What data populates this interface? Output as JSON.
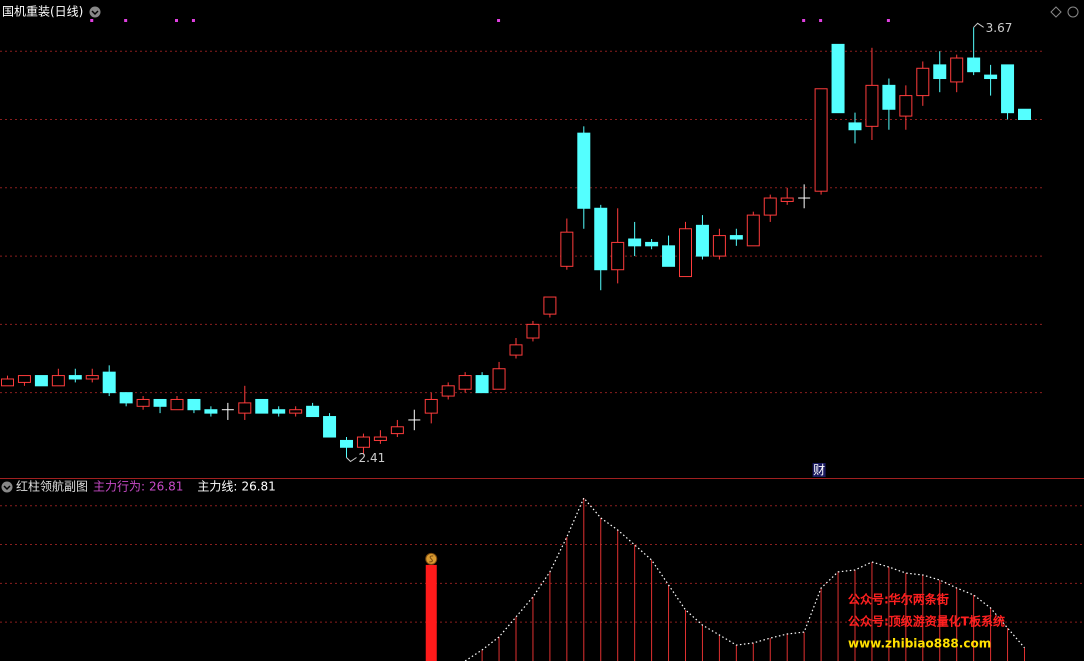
{
  "header": {
    "title": "国机重装(日线)"
  },
  "chart_data": [
    {
      "type": "candlestick",
      "open": [
        2.62,
        2.63,
        2.65,
        2.62,
        2.65,
        2.64,
        2.66,
        2.6,
        2.56,
        2.58,
        2.55,
        2.58,
        2.55,
        2.55,
        2.54,
        2.58,
        2.55,
        2.54,
        2.56,
        2.53,
        2.46,
        2.44,
        2.46,
        2.48,
        2.52,
        2.54,
        2.59,
        2.61,
        2.65,
        2.61,
        2.71,
        2.76,
        2.83,
        2.97,
        3.36,
        3.14,
        2.96,
        3.05,
        3.04,
        3.03,
        2.94,
        3.09,
        3.0,
        3.06,
        3.03,
        3.12,
        3.16,
        3.17,
        3.19,
        3.62,
        3.39,
        3.38,
        3.5,
        3.41,
        3.47,
        3.56,
        3.51,
        3.58,
        3.53,
        3.56,
        3.43
      ],
      "close": [
        2.64,
        2.65,
        2.62,
        2.65,
        2.64,
        2.65,
        2.6,
        2.57,
        2.58,
        2.56,
        2.58,
        2.55,
        2.54,
        2.55,
        2.57,
        2.54,
        2.54,
        2.55,
        2.53,
        2.47,
        2.44,
        2.47,
        2.47,
        2.5,
        2.52,
        2.58,
        2.62,
        2.65,
        2.6,
        2.67,
        2.74,
        2.8,
        2.88,
        3.07,
        3.14,
        2.96,
        3.04,
        3.03,
        3.03,
        2.97,
        3.08,
        3.0,
        3.06,
        3.05,
        3.12,
        3.17,
        3.17,
        3.17,
        3.49,
        3.42,
        3.37,
        3.5,
        3.43,
        3.47,
        3.55,
        3.52,
        3.58,
        3.54,
        3.52,
        3.42,
        3.4
      ],
      "high": [
        2.65,
        2.65,
        2.65,
        2.67,
        2.67,
        2.67,
        2.68,
        2.6,
        2.59,
        2.58,
        2.59,
        2.58,
        2.56,
        2.57,
        2.62,
        2.58,
        2.56,
        2.56,
        2.57,
        2.54,
        2.47,
        2.48,
        2.49,
        2.52,
        2.55,
        2.6,
        2.63,
        2.66,
        2.66,
        2.69,
        2.76,
        2.81,
        2.88,
        3.11,
        3.38,
        3.15,
        3.14,
        3.1,
        3.05,
        3.06,
        3.1,
        3.12,
        3.08,
        3.08,
        3.13,
        3.18,
        3.2,
        3.21,
        3.49,
        3.62,
        3.42,
        3.61,
        3.52,
        3.5,
        3.57,
        3.6,
        3.59,
        3.67,
        3.56,
        3.56,
        3.43
      ],
      "low": [
        2.62,
        2.62,
        2.62,
        2.62,
        2.63,
        2.63,
        2.59,
        2.56,
        2.55,
        2.54,
        2.55,
        2.54,
        2.53,
        2.52,
        2.52,
        2.54,
        2.53,
        2.53,
        2.53,
        2.47,
        2.41,
        2.42,
        2.45,
        2.47,
        2.49,
        2.51,
        2.58,
        2.6,
        2.6,
        2.61,
        2.7,
        2.75,
        2.82,
        2.96,
        3.08,
        2.9,
        2.92,
        3.0,
        3.02,
        2.97,
        2.94,
        2.99,
        2.99,
        3.03,
        3.03,
        3.1,
        3.15,
        3.14,
        3.18,
        3.42,
        3.33,
        3.34,
        3.37,
        3.37,
        3.44,
        3.48,
        3.48,
        3.53,
        3.47,
        3.4,
        3.4
      ],
      "colors": {
        "up": "#ff3c3c",
        "down": "#54ffff",
        "flat": "#ffffff"
      },
      "ylim": [
        2.35,
        3.75
      ],
      "grid_lines": [
        2.6,
        2.8,
        3.0,
        3.2,
        3.4,
        3.6
      ],
      "grid_color": "#8a1e1e",
      "signals": [
        5,
        7,
        10,
        11,
        29,
        47,
        48,
        52
      ],
      "signal_color": "#e040e0",
      "high_label": "3.67",
      "low_label": "2.41",
      "event_marker": {
        "index": 48,
        "text": "财"
      }
    },
    {
      "type": "line",
      "title": "红柱领航副图",
      "ylim": [
        20,
        105
      ],
      "grid_lines": [
        40,
        60,
        80,
        100
      ],
      "grid_color": "#8a1e1e",
      "series": [
        {
          "name": "主力行为:",
          "label_color": "#c84bc8",
          "color": "#e03030",
          "style": "sticks",
          "values": [
            null,
            null,
            null,
            null,
            null,
            null,
            null,
            null,
            null,
            null,
            null,
            null,
            null,
            null,
            null,
            null,
            null,
            null,
            null,
            null,
            null,
            null,
            null,
            null,
            null,
            null,
            null,
            20.0,
            25.7,
            32.4,
            42.7,
            53.0,
            65.9,
            83.9,
            104.0,
            93.7,
            87.5,
            79.8,
            72.0,
            59.2,
            46.3,
            38.5,
            33.4,
            28.2,
            29.3,
            31.8,
            33.9,
            34.9,
            57.6,
            65.9,
            66.9,
            71.0,
            68.4,
            65.3,
            64.3,
            61.7,
            57.6,
            54.0,
            47.3,
            37.0,
            26.81
          ]
        },
        {
          "name": "主力线:",
          "label_color": "#ffffff",
          "color": "#ffffff",
          "style": "dotted",
          "values": [
            null,
            null,
            null,
            null,
            null,
            null,
            null,
            null,
            null,
            null,
            null,
            null,
            null,
            null,
            null,
            null,
            null,
            null,
            null,
            null,
            null,
            null,
            null,
            null,
            null,
            null,
            null,
            20.0,
            25.7,
            32.4,
            42.7,
            53.0,
            65.9,
            83.9,
            104.0,
            93.7,
            87.5,
            79.8,
            72.0,
            59.2,
            46.3,
            38.5,
            33.4,
            28.2,
            29.3,
            31.8,
            33.9,
            34.9,
            57.6,
            65.9,
            66.9,
            71.0,
            68.4,
            65.3,
            64.3,
            61.7,
            57.6,
            54.0,
            47.3,
            37.0,
            26.81
          ]
        }
      ],
      "red_bar": {
        "color": "#ff1a1a",
        "values": [
          null,
          null,
          null,
          null,
          null,
          null,
          null,
          null,
          null,
          null,
          null,
          null,
          null,
          null,
          null,
          null,
          null,
          null,
          null,
          null,
          null,
          null,
          null,
          null,
          null,
          69.5,
          null,
          null,
          null,
          null,
          null,
          null,
          null,
          null,
          null,
          null,
          null,
          null,
          null,
          null,
          null,
          null,
          null,
          null,
          null,
          null,
          null,
          null,
          null,
          null,
          null,
          null,
          null,
          null,
          null,
          null,
          null,
          null,
          null,
          null,
          null
        ]
      }
    }
  ],
  "watermark": [
    "公众号:华尔两条街",
    "公众号:顶级游资量化T板系统",
    "www.zhibiao888.com"
  ]
}
